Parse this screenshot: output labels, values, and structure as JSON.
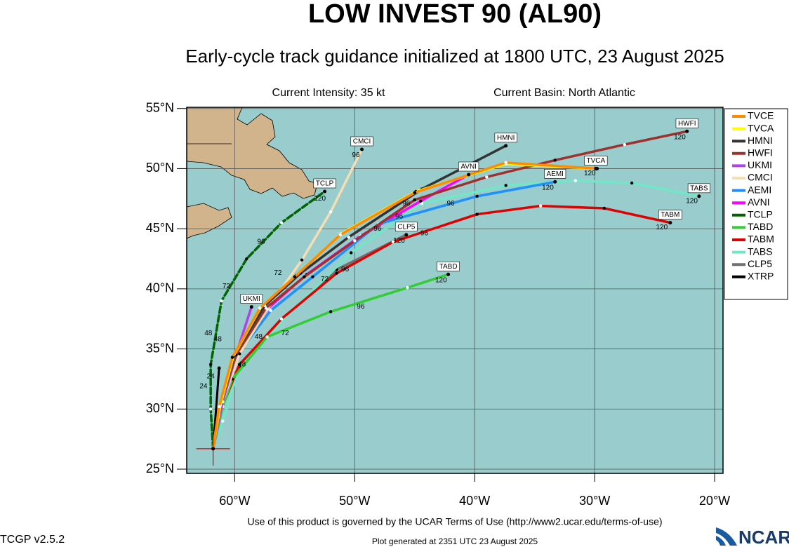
{
  "chart_data": {
    "type": "line",
    "title": "LOW INVEST 90 (AL90)",
    "subtitle": "Early-cycle track guidance initialized at 1800 UTC, 23 August 2025",
    "info_left": "Current Intensity: 35 kt",
    "info_right": "Current Basin: North Atlantic",
    "footer": "Use of this product is governed by the UCAR Terms of Use (http://www2.ucar.edu/terms-of-use)",
    "version": "TCGP v2.5.2",
    "generated": "Plot generated at 2351 UTC   23 August 2025",
    "logo": "NCAR",
    "xlim": [
      -64,
      -19.3
    ],
    "ylim": [
      24.65,
      55.1
    ],
    "xticks": [
      {
        "value": -60,
        "label": "60°W"
      },
      {
        "value": -50,
        "label": "50°W"
      },
      {
        "value": -40,
        "label": "40°W"
      },
      {
        "value": -30,
        "label": "30°W"
      },
      {
        "value": -20,
        "label": "20°W"
      }
    ],
    "yticks": [
      {
        "value": 25,
        "label": "25°N"
      },
      {
        "value": 30,
        "label": "30°N"
      },
      {
        "value": 35,
        "label": "35°N"
      },
      {
        "value": 40,
        "label": "40°N"
      },
      {
        "value": 45,
        "label": "45°N"
      },
      {
        "value": 50,
        "label": "50°N"
      },
      {
        "value": 55,
        "label": "55°N"
      }
    ],
    "grid": true,
    "legend": "right",
    "current_position": {
      "x": -61.8,
      "y": 26.7
    },
    "series": [
      {
        "name": "TVCE",
        "color": "#ff8c00",
        "end_label": false,
        "x": [
          -61.8,
          -61.3,
          -60.2,
          -57.9,
          -55.0,
          -51.2,
          -45.0,
          -37.4,
          -29.8
        ],
        "values": [
          26.7,
          30.2,
          34.3,
          38.4,
          41.0,
          44.5,
          48.0,
          50.5,
          50.0
        ]
      },
      {
        "name": "TVCA",
        "color": "#ffff00",
        "end_label": true,
        "x": [
          -61.8,
          -61.2,
          -60.1,
          -57.8,
          -54.9,
          -51.1,
          -44.9,
          -37.4,
          -29.9
        ],
        "values": [
          26.7,
          30.3,
          34.4,
          38.5,
          41.1,
          44.6,
          48.1,
          50.4,
          50.0
        ]
      },
      {
        "name": "HMNI",
        "color": "#333333",
        "end_label": true,
        "x": [
          -61.8,
          -61.2,
          -60.0,
          -57.5,
          -54.5,
          -50.5,
          -44.4,
          -37.4
        ],
        "values": [
          26.7,
          30.5,
          34.6,
          38.6,
          41.3,
          44.3,
          48.3,
          51.9
        ]
      },
      {
        "name": "HWFI",
        "color": "#a0302d",
        "end_label": true,
        "x": [
          -61.8,
          -61.2,
          -59.9,
          -57.4,
          -54.2,
          -50.0,
          -45.0,
          -39.0,
          -33.3,
          -27.5,
          -22.3
        ],
        "values": [
          26.7,
          30.4,
          34.5,
          38.4,
          41.0,
          44.0,
          47.4,
          49.3,
          50.7,
          52.0,
          53.1
        ]
      },
      {
        "name": "UKMI",
        "color": "#b040f0",
        "end_label": true,
        "x": [
          -61.8,
          -61.0,
          -59.8,
          -58.6
        ],
        "values": [
          26.7,
          30.6,
          34.8,
          38.5
        ]
      },
      {
        "name": "CMCI",
        "color": "#f5deb3",
        "end_label": true,
        "x": [
          -61.8,
          -61.0,
          -59.6,
          -57.3,
          -54.4,
          -52.0,
          -49.4
        ],
        "values": [
          26.7,
          30.6,
          34.6,
          38.3,
          42.4,
          46.4,
          51.6
        ]
      },
      {
        "name": "AEMI",
        "color": "#1e90ff",
        "end_label": true,
        "x": [
          -61.8,
          -61.2,
          -59.8,
          -57.0,
          -53.5,
          -48.0,
          -39.8,
          -33.3
        ],
        "values": [
          26.7,
          30.4,
          34.5,
          38.2,
          41.0,
          45.4,
          47.7,
          48.9
        ]
      },
      {
        "name": "AVNI",
        "color": "#ff00ff",
        "end_label": true,
        "x": [
          -61.8,
          -61.2,
          -59.8,
          -57.2,
          -54.0,
          -49.5,
          -44.5,
          -40.5
        ],
        "values": [
          26.7,
          30.4,
          34.6,
          38.4,
          41.2,
          44.4,
          47.3,
          49.5
        ]
      },
      {
        "name": "TCLP",
        "color": "#006400",
        "end_label": true,
        "x": [
          -61.8,
          -62.0,
          -62.0,
          -61.1,
          -59.0,
          -56.1,
          -52.5
        ],
        "values": [
          26.7,
          30.0,
          33.7,
          39.0,
          42.5,
          45.5,
          48.1
        ]
      },
      {
        "name": "TABD",
        "color": "#32cd32",
        "end_label": true,
        "x": [
          -61.8,
          -61.0,
          -60.2,
          -57.3,
          -52.0,
          -45.6,
          -42.2
        ],
        "values": [
          26.7,
          30.2,
          32.5,
          36.0,
          38.1,
          40.1,
          41.2
        ]
      },
      {
        "name": "TABM",
        "color": "#e00000",
        "end_label": true,
        "x": [
          -61.8,
          -61.0,
          -59.6,
          -56.1,
          -51.5,
          -46.8,
          -39.8,
          -34.5,
          -29.2,
          -23.7
        ],
        "values": [
          26.7,
          30.3,
          33.7,
          37.5,
          41.3,
          43.9,
          46.2,
          46.9,
          46.7,
          45.5
        ]
      },
      {
        "name": "TABS",
        "color": "#70e8c8",
        "end_label": true,
        "x": [
          -61.8,
          -61.0,
          -59.6,
          -55.0,
          -50.3,
          -44.4,
          -37.4,
          -31.6,
          -26.9,
          -21.3
        ],
        "values": [
          26.7,
          29.0,
          33.5,
          38.4,
          43.0,
          47.1,
          48.6,
          49.0,
          48.8,
          47.7
        ]
      },
      {
        "name": "CLP5",
        "color": "#707070",
        "end_label": true,
        "x": [
          -61.8,
          -61.0,
          -59.6,
          -55.0,
          -51.5,
          -45.7
        ],
        "values": [
          26.7,
          30.4,
          33.7,
          38.4,
          41.6,
          44.5
        ]
      },
      {
        "name": "XTRP",
        "color": "#000000",
        "end_label": false,
        "x": [
          -61.8,
          -61.3
        ],
        "values": [
          26.7,
          33.4
        ]
      }
    ],
    "annotations": [
      {
        "text": "120",
        "x": -22.9,
        "y": 52.6
      },
      {
        "text": "120",
        "x": -30.4,
        "y": 49.6
      },
      {
        "text": "120",
        "x": -33.9,
        "y": 48.4
      },
      {
        "text": "120",
        "x": -21.9,
        "y": 47.3
      },
      {
        "text": "120",
        "x": -24.4,
        "y": 45.1
      },
      {
        "text": "120",
        "x": -46.3,
        "y": 44.0
      },
      {
        "text": "120",
        "x": -42.8,
        "y": 40.7
      },
      {
        "text": "96",
        "x": -49.9,
        "y": 51.1
      },
      {
        "text": "120",
        "x": -52.9,
        "y": 47.5
      },
      {
        "text": "96",
        "x": -57.8,
        "y": 43.9
      },
      {
        "text": "72",
        "x": -60.7,
        "y": 40.2
      },
      {
        "text": "48",
        "x": -62.2,
        "y": 36.3
      },
      {
        "text": "24",
        "x": -62.6,
        "y": 31.9
      },
      {
        "text": "96",
        "x": -45.7,
        "y": 47.1
      },
      {
        "text": "96",
        "x": -42.0,
        "y": 47.1
      },
      {
        "text": "96",
        "x": -46.3,
        "y": 46.0
      },
      {
        "text": "96",
        "x": -48.1,
        "y": 45.0
      },
      {
        "text": "96",
        "x": -44.2,
        "y": 44.6
      },
      {
        "text": "96",
        "x": -50.8,
        "y": 41.6
      },
      {
        "text": "96",
        "x": -49.5,
        "y": 38.5
      },
      {
        "text": "72",
        "x": -56.4,
        "y": 41.3
      },
      {
        "text": "72",
        "x": -52.5,
        "y": 40.8
      },
      {
        "text": "72",
        "x": -55.8,
        "y": 36.3
      },
      {
        "text": "48",
        "x": -58.0,
        "y": 36.0
      },
      {
        "text": "48",
        "x": -59.4,
        "y": 33.7
      },
      {
        "text": "24",
        "x": -62.0,
        "y": 32.7
      },
      {
        "text": "48",
        "x": -61.4,
        "y": 35.8
      }
    ]
  }
}
